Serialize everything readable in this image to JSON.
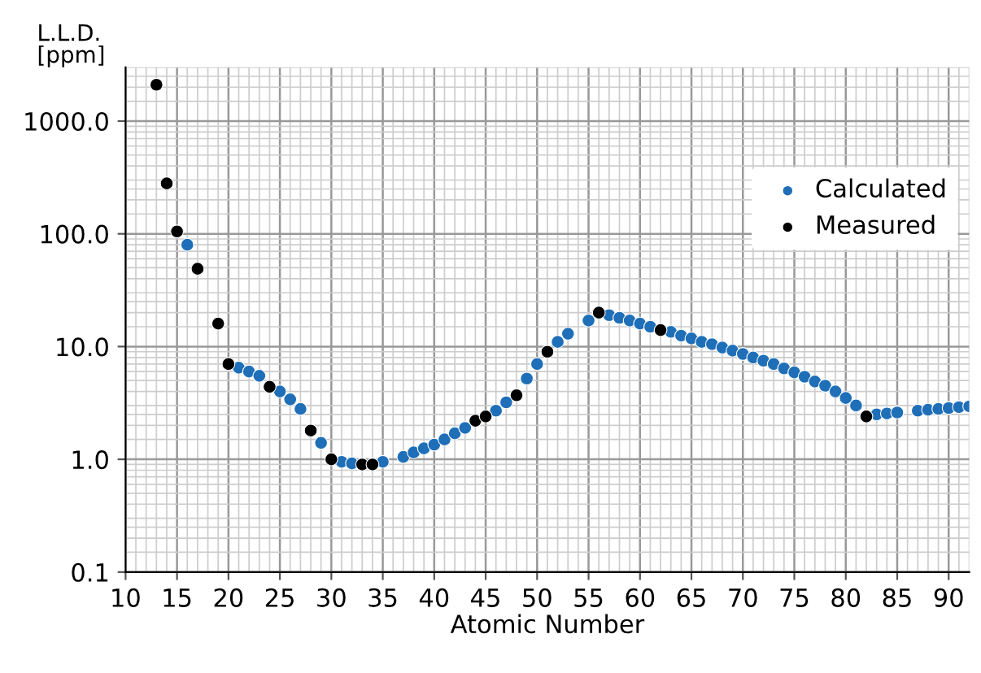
{
  "chart_data": {
    "type": "scatter",
    "xlabel": "Atomic Number",
    "ylabel": "L.L.D.\n[ppm]",
    "log": "y",
    "grid": true,
    "legend": "right",
    "marker": "circle",
    "xlim": [
      10,
      92
    ],
    "xticks": [
      10,
      15,
      20,
      25,
      30,
      35,
      40,
      45,
      50,
      55,
      60,
      65,
      70,
      75,
      80,
      85,
      90
    ],
    "ylim": [
      0.1,
      3000
    ],
    "yticks": [
      {
        "value": 0.1,
        "label": "0.1"
      },
      {
        "value": 1,
        "label": "1.0"
      },
      {
        "value": 10,
        "label": "10.0"
      },
      {
        "value": 100,
        "label": "100.0"
      },
      {
        "value": 1000,
        "label": "1000.0"
      }
    ],
    "series": [
      {
        "name": "Calculated",
        "color": "#1f6fb8",
        "x": [
          16,
          21,
          22,
          23,
          25,
          26,
          27,
          29,
          31,
          32,
          35,
          37,
          38,
          39,
          40,
          41,
          42,
          43,
          46,
          47,
          49,
          50,
          52,
          53,
          55,
          57,
          58,
          59,
          60,
          61,
          63,
          64,
          65,
          66,
          67,
          68,
          69,
          70,
          71,
          72,
          73,
          74,
          75,
          76,
          77,
          78,
          79,
          80,
          81,
          83,
          84,
          85,
          87,
          88,
          89,
          90,
          91,
          92
        ],
        "values": [
          80,
          6.5,
          6.0,
          5.5,
          4.0,
          3.4,
          2.8,
          1.4,
          0.95,
          0.92,
          0.95,
          1.05,
          1.15,
          1.25,
          1.35,
          1.5,
          1.7,
          1.9,
          2.7,
          3.2,
          5.2,
          7,
          11,
          13,
          17,
          19,
          18,
          17,
          16,
          15,
          13.5,
          12.5,
          11.8,
          11,
          10.5,
          9.8,
          9.2,
          8.6,
          8,
          7.5,
          7,
          6.4,
          5.9,
          5.4,
          4.9,
          4.5,
          4.0,
          3.5,
          3.0,
          2.5,
          2.55,
          2.6,
          2.7,
          2.75,
          2.8,
          2.85,
          2.9,
          2.95
        ]
      },
      {
        "name": "Measured",
        "color": "#000000",
        "x": [
          13,
          14,
          15,
          17,
          19,
          20,
          24,
          28,
          30,
          33,
          34,
          44,
          45,
          48,
          51,
          56,
          62,
          82
        ],
        "values": [
          2100,
          280,
          105,
          49,
          16,
          7,
          4.4,
          1.8,
          1.0,
          0.9,
          0.9,
          2.2,
          2.4,
          3.7,
          9,
          20,
          14,
          2.4
        ]
      }
    ]
  }
}
